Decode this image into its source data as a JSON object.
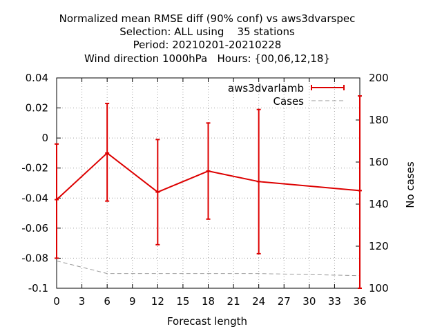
{
  "chart_data": {
    "type": "line",
    "title": [
      "Normalized mean RMSE diff (90% conf) vs aws3dvarspec",
      "Selection: ALL using    35 stations",
      "Period: 20210201-20210228",
      "Wind direction 1000hPa   Hours: {00,06,12,18}"
    ],
    "xlabel": "Forecast length",
    "ylabel": "",
    "y2label": "No cases",
    "xlim": [
      0,
      36
    ],
    "ylim": [
      -0.1,
      0.04
    ],
    "y2lim": [
      100,
      200
    ],
    "x_ticks": [
      "0",
      "3",
      "6",
      "9",
      "12",
      "15",
      "18",
      "21",
      "24",
      "27",
      "30",
      "33",
      "36"
    ],
    "y_ticks": [
      "0.04",
      "0.02",
      "0",
      "-0.02",
      "-0.04",
      "-0.06",
      "-0.08",
      "-0.1"
    ],
    "y2_ticks": [
      "200",
      "180",
      "160",
      "140",
      "120",
      "100"
    ],
    "grid": true,
    "legend_position": "top-right",
    "series": [
      {
        "name": "aws3dvarlamb",
        "axis": "left",
        "color": "#dd0000",
        "x": [
          0,
          6,
          12,
          18,
          24,
          36
        ],
        "y": [
          -0.041,
          -0.01,
          -0.036,
          -0.022,
          -0.029,
          -0.035
        ],
        "err_low": [
          -0.08,
          -0.042,
          -0.071,
          -0.054,
          -0.077,
          -0.1
        ],
        "err_high": [
          -0.004,
          0.023,
          -0.001,
          0.01,
          0.019,
          0.028
        ]
      },
      {
        "name": "Cases",
        "axis": "right",
        "color": "#999999",
        "dashed": true,
        "x": [
          0,
          6,
          12,
          18,
          24,
          30,
          36
        ],
        "y": [
          113,
          107,
          107,
          107,
          107,
          106.5,
          106
        ]
      }
    ]
  }
}
